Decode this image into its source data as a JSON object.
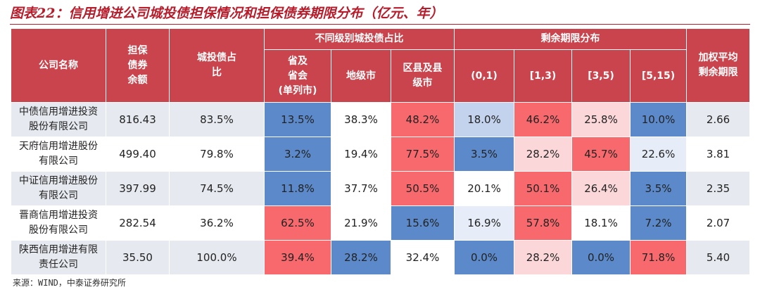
{
  "title": "图表22：信用增进公司城投债担保情况和担保债券期限分布（亿元、年）",
  "table": {
    "header": {
      "company": "公司名称",
      "amount": "担保\n债券\n余额",
      "ratio": "城投债占\n比",
      "group_level": "不同级别城投债占比",
      "group_term": "剩余期限分布",
      "level": [
        "省及\n省会\n(单列市)",
        "地级市",
        "区县及县\n级市"
      ],
      "term": [
        "(0,1)",
        "[1,3)",
        "[3,5)",
        "[5,15)"
      ],
      "weighted": "加权平均\n剩余期限"
    },
    "rows": [
      [
        "中债信用增进投资股份有限公司",
        "816.43",
        "83.5%",
        "13.5%",
        "38.3%",
        "48.2%",
        "18.0%",
        "46.2%",
        "25.8%",
        "10.0%",
        "2.66"
      ],
      [
        "天府信用增进股份有限公司",
        "499.40",
        "79.8%",
        "3.2%",
        "19.4%",
        "77.5%",
        "3.5%",
        "28.2%",
        "45.7%",
        "22.6%",
        "3.81"
      ],
      [
        "中证信用增进股份有限公司",
        "397.99",
        "74.5%",
        "11.8%",
        "37.7%",
        "50.5%",
        "20.1%",
        "50.1%",
        "26.4%",
        "3.5%",
        "2.35"
      ],
      [
        "晋商信用增进投资股份有限公司",
        "282.54",
        "36.2%",
        "62.5%",
        "21.9%",
        "15.6%",
        "16.9%",
        "57.8%",
        "18.1%",
        "7.2%",
        "2.07"
      ],
      [
        "陕西信用增进有限责任公司",
        "35.50",
        "100.0%",
        "39.4%",
        "28.2%",
        "32.4%",
        "0.0%",
        "28.2%",
        "0.0%",
        "71.8%",
        "5.40"
      ]
    ]
  },
  "source": "来源：WIND，中泰证券研究所"
}
